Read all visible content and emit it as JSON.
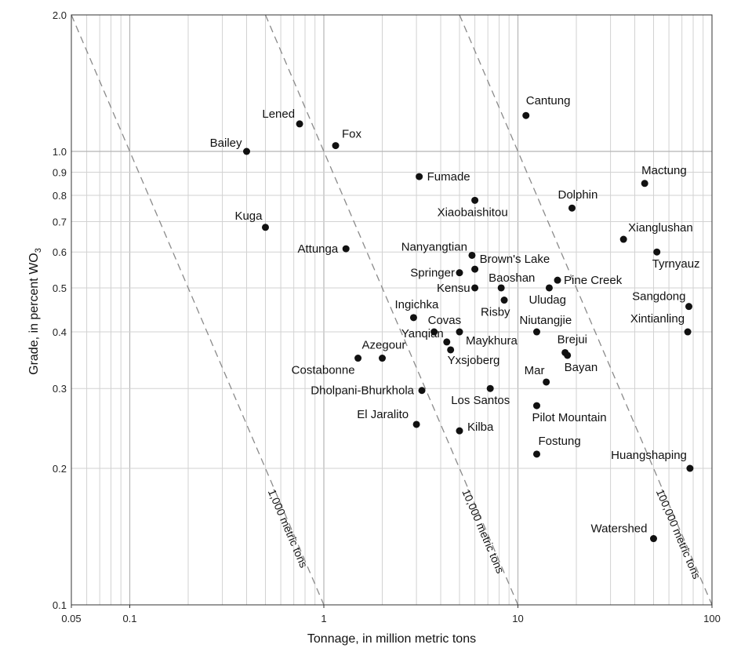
{
  "chart_data": {
    "type": "scatter",
    "title": "",
    "xlabel": "Tonnage, in million metric tons",
    "ylabel": "Grade, in percent WO",
    "ylabel_sub": "3",
    "xscale": "log",
    "yscale": "log",
    "xlim": [
      0.05,
      100
    ],
    "ylim": [
      0.1,
      2.0
    ],
    "grid": true,
    "x_ticks": [
      {
        "value": 0.05,
        "label": "0.05"
      },
      {
        "value": 0.1,
        "label": "0.1"
      },
      {
        "value": 1,
        "label": "1"
      },
      {
        "value": 10,
        "label": "10"
      },
      {
        "value": 100,
        "label": "100"
      }
    ],
    "y_ticks": [
      {
        "value": 0.1,
        "label": "0.1"
      },
      {
        "value": 0.2,
        "label": "0.2"
      },
      {
        "value": 0.3,
        "label": "0.3"
      },
      {
        "value": 0.4,
        "label": "0.4"
      },
      {
        "value": 0.5,
        "label": "0.5"
      },
      {
        "value": 0.6,
        "label": "0.6"
      },
      {
        "value": 0.7,
        "label": "0.7"
      },
      {
        "value": 0.8,
        "label": "0.8"
      },
      {
        "value": 0.9,
        "label": "0.9"
      },
      {
        "value": 1.0,
        "label": "1.0"
      },
      {
        "value": 2.0,
        "label": "2.0"
      }
    ],
    "iso_tonnage_lines": [
      {
        "label": "1,000 metric tons",
        "contained": 0.1
      },
      {
        "label": "10,000 metric tons",
        "contained": 1
      },
      {
        "label": "100,000 metric tons",
        "contained": 10
      }
    ],
    "points": [
      {
        "name": "Cantung",
        "x": 11,
        "y": 1.2
      },
      {
        "name": "Lened",
        "x": 0.75,
        "y": 1.15
      },
      {
        "name": "Fox",
        "x": 1.15,
        "y": 1.03
      },
      {
        "name": "Bailey",
        "x": 0.4,
        "y": 1.0
      },
      {
        "name": "Fumade",
        "x": 3.1,
        "y": 0.88
      },
      {
        "name": "Mactung",
        "x": 45,
        "y": 0.85
      },
      {
        "name": "Xiaobaishitou",
        "x": 6,
        "y": 0.78
      },
      {
        "name": "Dolphin",
        "x": 19,
        "y": 0.75
      },
      {
        "name": "Kuga",
        "x": 0.5,
        "y": 0.68
      },
      {
        "name": "Xianglushan",
        "x": 35,
        "y": 0.64
      },
      {
        "name": "Attunga",
        "x": 1.3,
        "y": 0.61
      },
      {
        "name": "Tyrnyauz",
        "x": 52,
        "y": 0.6
      },
      {
        "name": "Nanyangtian",
        "x": 5.8,
        "y": 0.59
      },
      {
        "name": "Brown's Lake",
        "x": 6,
        "y": 0.55
      },
      {
        "name": "Springer",
        "x": 5,
        "y": 0.54
      },
      {
        "name": "Pine Creek",
        "x": 16,
        "y": 0.52
      },
      {
        "name": "Kensu",
        "x": 6,
        "y": 0.5
      },
      {
        "name": "Baoshan",
        "x": 8.2,
        "y": 0.5
      },
      {
        "name": "Uludag",
        "x": 14.5,
        "y": 0.5
      },
      {
        "name": "Risby",
        "x": 8.5,
        "y": 0.47
      },
      {
        "name": "Sangdong",
        "x": 76,
        "y": 0.455
      },
      {
        "name": "Ingichka",
        "x": 2.9,
        "y": 0.43
      },
      {
        "name": "Covas",
        "x": 3.7,
        "y": 0.4
      },
      {
        "name": "Maykhura",
        "x": 5,
        "y": 0.4
      },
      {
        "name": "Niutangjie",
        "x": 12.5,
        "y": 0.4
      },
      {
        "name": "Xintianling",
        "x": 75,
        "y": 0.4
      },
      {
        "name": "Yanqian",
        "x": 4.3,
        "y": 0.38
      },
      {
        "name": "Yxsjoberg",
        "x": 4.5,
        "y": 0.365
      },
      {
        "name": "Brejui",
        "x": 17.5,
        "y": 0.36
      },
      {
        "name": "Bayan",
        "x": 18,
        "y": 0.355
      },
      {
        "name": "Azegour",
        "x": 2,
        "y": 0.35
      },
      {
        "name": "Costabonne",
        "x": 1.5,
        "y": 0.35
      },
      {
        "name": "Mar",
        "x": 14,
        "y": 0.31
      },
      {
        "name": "Los Santos",
        "x": 7.2,
        "y": 0.3
      },
      {
        "name": "Dholpani-Bhurkhola",
        "x": 3.2,
        "y": 0.297
      },
      {
        "name": "Pilot Mountain",
        "x": 12.5,
        "y": 0.275
      },
      {
        "name": "El Jaralito",
        "x": 3,
        "y": 0.25
      },
      {
        "name": "Kilba",
        "x": 5,
        "y": 0.242
      },
      {
        "name": "Fostung",
        "x": 12.5,
        "y": 0.215
      },
      {
        "name": "Huangshaping",
        "x": 77,
        "y": 0.2
      },
      {
        "name": "Watershed",
        "x": 50,
        "y": 0.14
      }
    ]
  }
}
